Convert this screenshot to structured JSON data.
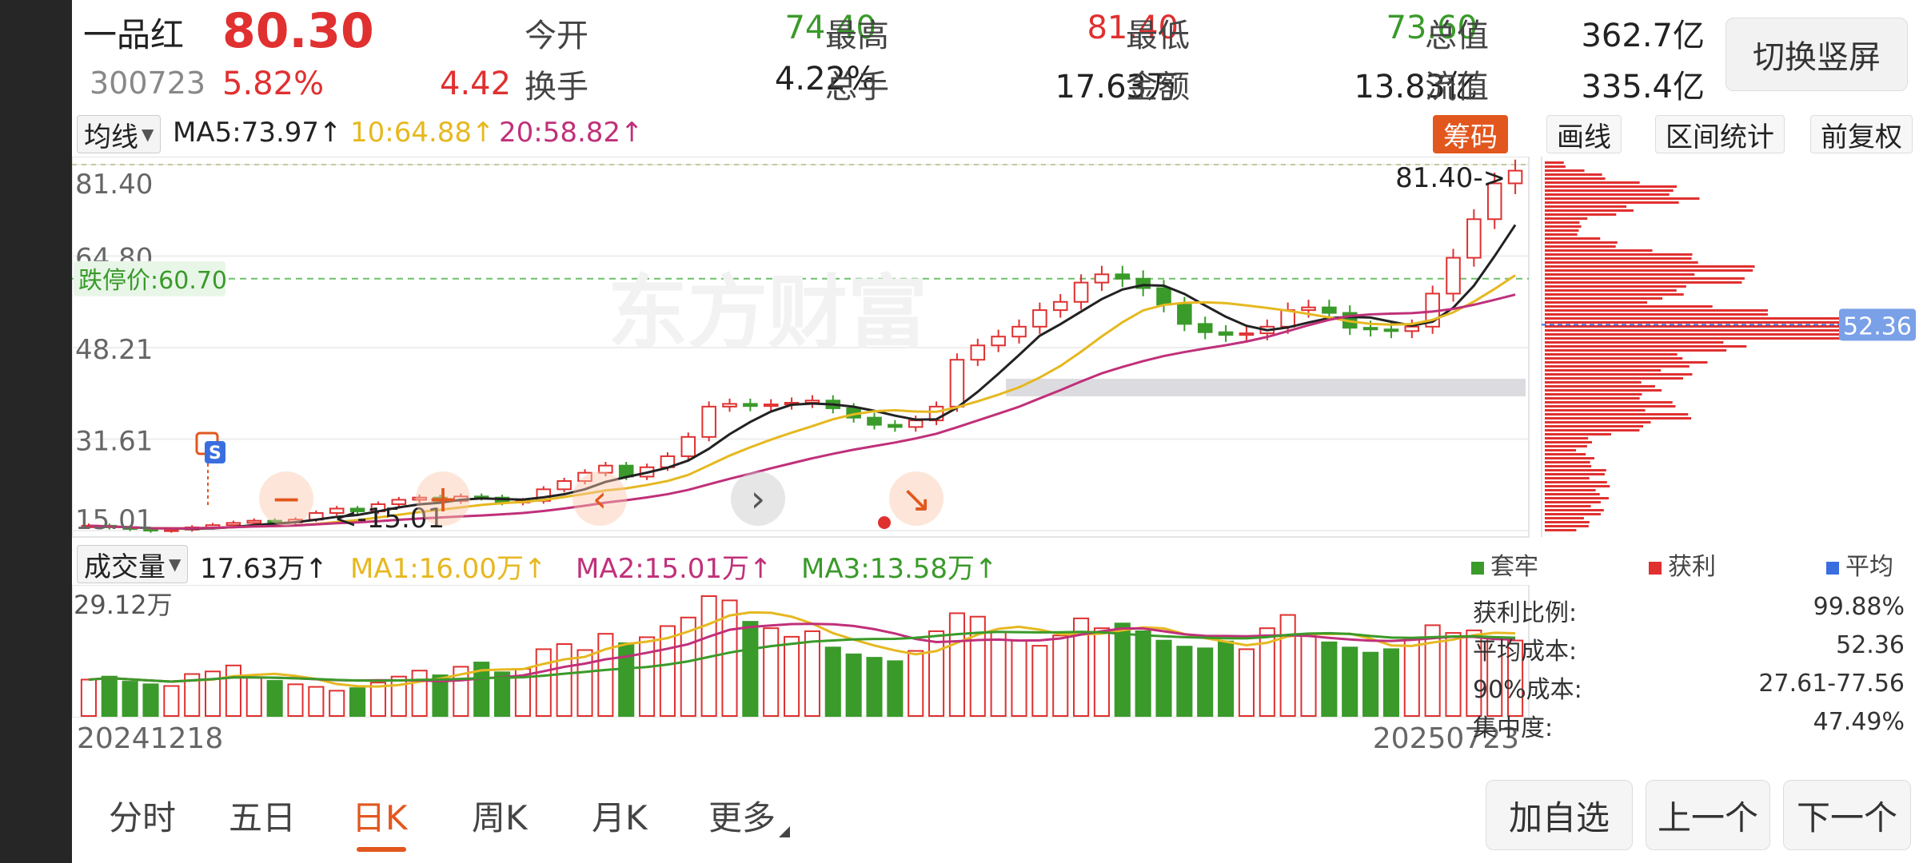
{
  "header": {
    "name": "一品红",
    "price": "80.30",
    "code": "300723",
    "pct": "5.82%",
    "change": "4.42",
    "stats": [
      {
        "label": "今开",
        "value": "74.40",
        "tone": "green"
      },
      {
        "label": "最高",
        "value": "81.40",
        "tone": "red"
      },
      {
        "label": "最低",
        "value": "73.60",
        "tone": "green"
      },
      {
        "label": "总值",
        "value": "362.7亿",
        "tone": "dark"
      },
      {
        "label": "换手",
        "value": "4.22%",
        "tone": "dark"
      },
      {
        "label": "总手",
        "value": "17.63万",
        "tone": "dark"
      },
      {
        "label": "金额",
        "value": "13.83亿",
        "tone": "dark"
      },
      {
        "label": "流值",
        "value": "335.4亿",
        "tone": "dark"
      }
    ],
    "switch_label": "切换竖屏"
  },
  "ma_row": {
    "selector": "均线",
    "ma5": "MA5:73.97↑",
    "ma10": "10:64.88↑",
    "ma20": "20:58.82↑",
    "tools": [
      "筹码",
      "画线",
      "区间统计",
      "前复权"
    ],
    "active_tool": "筹码"
  },
  "kline": {
    "y_labels": [
      "81.40",
      "64.80",
      "48.21",
      "31.61",
      "15.01"
    ],
    "limit_label": "跌停价:60.70",
    "high_marker": "81.40->",
    "low_marker": "<-15.01",
    "watermark": "东方财富",
    "chip_price_tag": "52.36",
    "signal_label": "S",
    "colors": {
      "up": "#e03030",
      "down": "#3a9a2a",
      "ma5": "#222222",
      "ma10": "#e6b820",
      "ma20": "#c0307a",
      "accent": "#e2571e"
    },
    "closes": [
      15.9,
      15.6,
      15.3,
      15.0,
      15.2,
      15.6,
      16.0,
      16.4,
      16.8,
      16.5,
      17.0,
      18.2,
      19.0,
      18.5,
      19.8,
      20.6,
      21.0,
      20.4,
      21.2,
      21.0,
      20.1,
      20.4,
      22.5,
      24.0,
      25.5,
      26.8,
      24.8,
      26.5,
      28.5,
      32.0,
      37.5,
      38.0,
      37.6,
      37.9,
      38.2,
      38.6,
      37.2,
      35.5,
      34.2,
      33.8,
      35.0,
      37.5,
      46.0,
      48.6,
      50.2,
      52.0,
      55.0,
      56.5,
      60.0,
      61.5,
      60.7,
      59.0,
      56.0,
      52.5,
      51.0,
      50.5,
      50.8,
      52.0,
      55.0,
      55.5,
      54.5,
      51.8,
      51.5,
      51.2,
      52.0,
      58.0,
      64.5,
      71.5,
      78.0,
      80.3
    ],
    "ma5_last": 73.97,
    "ma10_last": 64.88,
    "ma20_last": 58.82,
    "ylim": [
      15.01,
      81.4
    ]
  },
  "volume": {
    "selector": "成交量",
    "current": "17.63万↑",
    "ma1": "MA1:16.00万↑",
    "ma2": "MA2:15.01万↑",
    "ma3": "MA3:13.58万↑",
    "y_label": "29.12万",
    "max": 29.12,
    "bars": [
      8.5,
      9.2,
      8.0,
      7.4,
      7.0,
      9.8,
      10.4,
      11.8,
      9.0,
      8.2,
      7.4,
      6.8,
      5.9,
      6.5,
      7.8,
      9.2,
      10.6,
      9.5,
      11.5,
      12.5,
      10.2,
      11.0,
      15.6,
      16.8,
      15.4,
      19.2,
      17.0,
      18.4,
      21.0,
      23.0,
      28.0,
      27.0,
      22.0,
      20.5,
      18.5,
      19.8,
      16.0,
      14.4,
      13.6,
      12.8,
      15.2,
      19.8,
      24.0,
      23.2,
      19.6,
      17.6,
      16.4,
      18.8,
      22.8,
      20.5,
      21.6,
      19.8,
      17.6,
      16.2,
      15.8,
      17.4,
      15.6,
      20.5,
      23.6,
      18.8,
      17.2,
      16.0,
      14.8,
      15.6,
      18.2,
      21.2,
      19.4,
      20.0,
      18.4,
      17.63
    ],
    "ma1_last": 16.0,
    "ma2_last": 15.01,
    "ma3_last": 13.58
  },
  "dates": {
    "start": "20241218",
    "end": "20250723"
  },
  "chip": {
    "legend": [
      {
        "label": "套牢",
        "color": "#3a9a2a"
      },
      {
        "label": "获利",
        "color": "#e03030"
      },
      {
        "label": "平均",
        "color": "#3a6ee0"
      }
    ],
    "stats": [
      {
        "label": "获利比例:",
        "value": "99.88%"
      },
      {
        "label": "平均成本:",
        "value": "52.36"
      },
      {
        "label": "90%成本:",
        "value": "27.61-77.56"
      },
      {
        "label": "集中度:",
        "value": "47.49%"
      }
    ],
    "avg_cost": 52.36
  },
  "tabs": [
    "分时",
    "五日",
    "日K",
    "周K",
    "月K",
    "更多"
  ],
  "active_tab": "日K",
  "buttons": {
    "add": "加自选",
    "prev": "上一个",
    "next": "下一个"
  }
}
